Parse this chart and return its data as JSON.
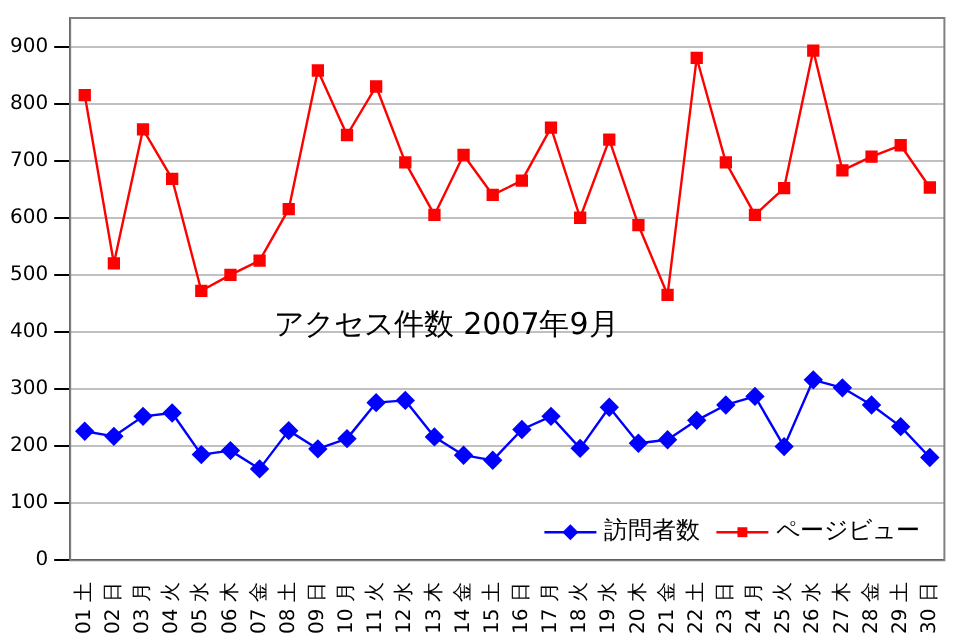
{
  "chart_data": {
    "type": "line",
    "title": "アクセス件数 2007年9月",
    "categories": [
      "01 土",
      "02 日",
      "03 月",
      "04 火",
      "05 水",
      "06 木",
      "07 金",
      "08 土",
      "09 日",
      "10 月",
      "11 火",
      "12 水",
      "13 木",
      "14 金",
      "15 土",
      "16 日",
      "17 月",
      "18 火",
      "19 水",
      "20 木",
      "21 金",
      "22 土",
      "23 日",
      "24 月",
      "25 火",
      "26 水",
      "27 木",
      "28 金",
      "29 土",
      "30 日"
    ],
    "series": [
      {
        "name": "訪問者数",
        "color": "#0000ff",
        "marker": "diamond",
        "values": [
          226,
          217,
          252,
          258,
          185,
          192,
          160,
          227,
          195,
          213,
          276,
          280,
          216,
          184,
          175,
          229,
          252,
          196,
          268,
          205,
          211,
          245,
          272,
          287,
          199,
          316,
          302,
          272,
          234,
          180
        ]
      },
      {
        "name": "ページビュー",
        "color": "#ff0000",
        "marker": "square",
        "values": [
          815,
          520,
          755,
          668,
          472,
          500,
          525,
          615,
          858,
          745,
          830,
          697,
          605,
          710,
          640,
          665,
          758,
          600,
          737,
          587,
          465,
          880,
          697,
          605,
          652,
          893,
          683,
          707,
          727,
          653
        ]
      }
    ],
    "ylim": [
      0,
      950
    ],
    "yticks": [
      0,
      100,
      200,
      300,
      400,
      500,
      600,
      700,
      800,
      900
    ],
    "grid": "y",
    "legend": "bottom right",
    "line_style": "solid"
  }
}
